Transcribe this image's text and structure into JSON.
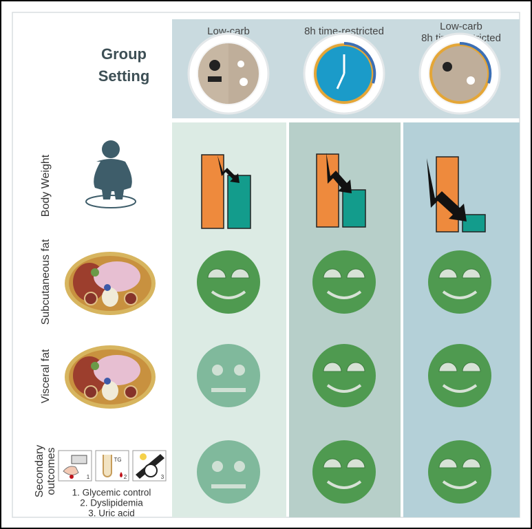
{
  "group_setting": [
    "Group",
    "Setting"
  ],
  "columns": [
    [
      "Low-carb"
    ],
    [
      "8h time-restricted"
    ],
    [
      "Low-carb",
      "8h time-restricted"
    ]
  ],
  "rows": [
    [
      "Body Weight"
    ],
    [
      "Subcutaneous fat"
    ],
    [
      "Visceral fat"
    ],
    [
      "Secondary",
      "outcomes"
    ]
  ],
  "secondary_outcomes": [
    "1. Glycemic control",
    "2. Dyslipidemia",
    "3. Uric acid"
  ],
  "icon_labels": [
    "TG",
    "1",
    "2",
    "3"
  ]
}
